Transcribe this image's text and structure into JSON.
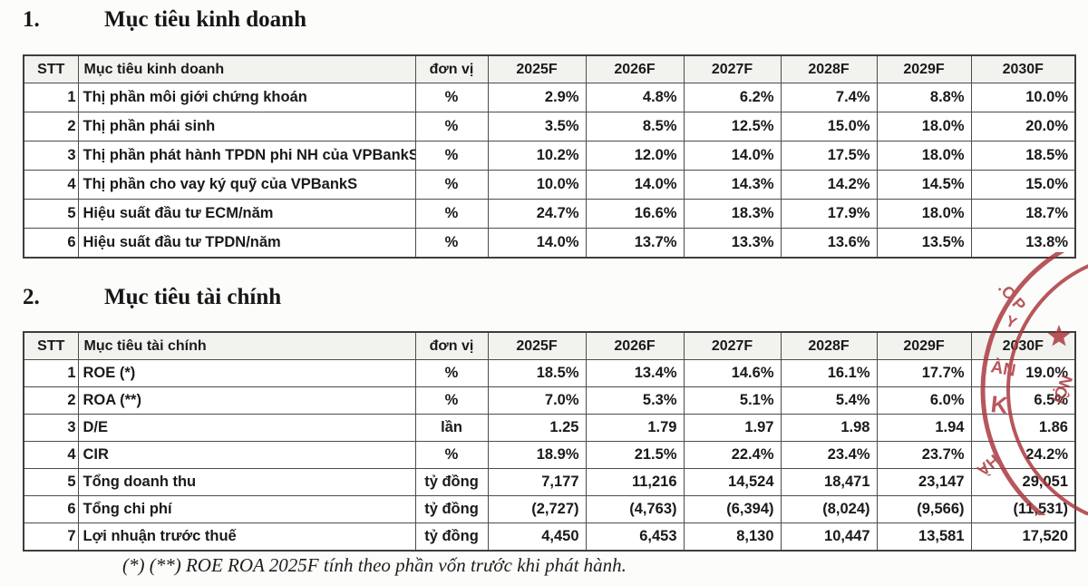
{
  "section1": {
    "number": "1.",
    "title": "Mục tiêu kinh doanh"
  },
  "section2": {
    "number": "2.",
    "title": "Mục tiêu tài chính"
  },
  "footnote": "(*) (**) ROE ROA 2025F tính theo phần vốn trước khi phát hành.",
  "table1": {
    "headers": [
      "STT",
      "Mục tiêu kinh doanh",
      "đơn vị",
      "2025F",
      "2026F",
      "2027F",
      "2028F",
      "2029F",
      "2030F"
    ],
    "rows": [
      {
        "stt": "1",
        "label": "Thị phần môi giới chứng khoán",
        "unit": "%",
        "values": [
          "2.9%",
          "4.8%",
          "6.2%",
          "7.4%",
          "8.8%",
          "10.0%"
        ]
      },
      {
        "stt": "2",
        "label": "Thị phần phái sinh",
        "unit": "%",
        "values": [
          "3.5%",
          "8.5%",
          "12.5%",
          "15.0%",
          "18.0%",
          "20.0%"
        ]
      },
      {
        "stt": "3",
        "label": "Thị phần phát hành TPDN phi NH của VPBankS",
        "unit": "%",
        "values": [
          "10.2%",
          "12.0%",
          "14.0%",
          "17.5%",
          "18.0%",
          "18.5%"
        ]
      },
      {
        "stt": "4",
        "label": "Thị phần cho vay ký quỹ của VPBankS",
        "unit": "%",
        "values": [
          "10.0%",
          "14.0%",
          "14.3%",
          "14.2%",
          "14.5%",
          "15.0%"
        ]
      },
      {
        "stt": "5",
        "label": "Hiệu suất đầu tư ECM/năm",
        "unit": "%",
        "values": [
          "24.7%",
          "16.6%",
          "18.3%",
          "17.9%",
          "18.0%",
          "18.7%"
        ]
      },
      {
        "stt": "6",
        "label": "Hiệu suất đầu tư TPDN/năm",
        "unit": "%",
        "values": [
          "14.0%",
          "13.7%",
          "13.3%",
          "13.6%",
          "13.5%",
          "13.8%"
        ]
      }
    ]
  },
  "table2": {
    "headers": [
      "STT",
      "Mục tiêu tài chính",
      "đơn vị",
      "2025F",
      "2026F",
      "2027F",
      "2028F",
      "2029F",
      "2030F"
    ],
    "rows": [
      {
        "stt": "1",
        "label": "ROE (*)",
        "unit": "%",
        "values": [
          "18.5%",
          "13.4%",
          "14.6%",
          "16.1%",
          "17.7%",
          "19.0%"
        ]
      },
      {
        "stt": "2",
        "label": "ROA (**)",
        "unit": "%",
        "values": [
          "7.0%",
          "5.3%",
          "5.1%",
          "5.4%",
          "6.0%",
          "6.5%"
        ]
      },
      {
        "stt": "3",
        "label": "D/E",
        "unit": "lần",
        "values": [
          "1.25",
          "1.79",
          "1.97",
          "1.98",
          "1.94",
          "1.86"
        ]
      },
      {
        "stt": "4",
        "label": "CIR",
        "unit": "%",
        "values": [
          "18.9%",
          "21.5%",
          "22.4%",
          "23.4%",
          "23.7%",
          "24.2%"
        ]
      },
      {
        "stt": "5",
        "label": "Tổng doanh thu",
        "unit": "tỷ đồng",
        "values": [
          "7,177",
          "11,216",
          "14,524",
          "18,471",
          "23,147",
          "29,051"
        ]
      },
      {
        "stt": "6",
        "label": "Tổng chi phí",
        "unit": "tỷ đồng",
        "values": [
          "(2,727)",
          "(4,763)",
          "(6,394)",
          "(8,024)",
          "(9,566)",
          "(11,531)"
        ]
      },
      {
        "stt": "7",
        "label": "Lợi nhuận trước thuế",
        "unit": "tỷ đồng",
        "values": [
          "4,450",
          "6,453",
          "8,130",
          "10,447",
          "13,581",
          "17,520"
        ]
      }
    ]
  },
  "stamp": {
    "color": "#a8333a",
    "fragments": [
      ".C.P",
      "Y",
      "ÀN",
      "K",
      "NỘI",
      "HÀ"
    ]
  }
}
